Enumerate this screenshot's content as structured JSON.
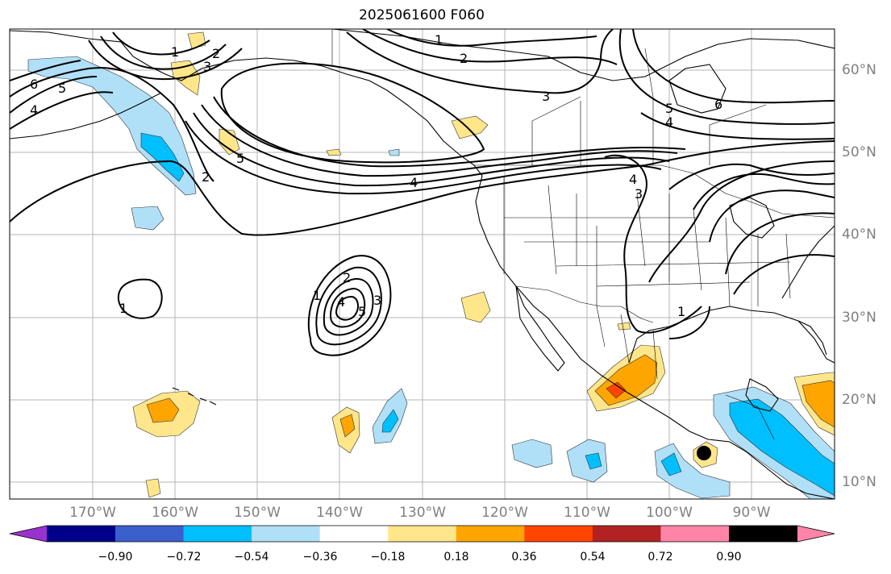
{
  "title": "2025061600 F060",
  "longitude_labels": [
    "170°W",
    "160°W",
    "150°W",
    "140°W",
    "130°W",
    "120°W",
    "110°W",
    "100°W",
    "90°W"
  ],
  "latitude_labels": [
    "60°N",
    "50°N",
    "40°N",
    "30°N",
    "20°N",
    "10°N"
  ],
  "colorbar": {
    "tick_labels": [
      "−0.90",
      "−0.72",
      "−0.54",
      "−0.36",
      "−0.18",
      "0.18",
      "0.36",
      "0.54",
      "0.72",
      "0.90"
    ],
    "colors": [
      "#9932cc",
      "#00008b",
      "#3a5fcd",
      "#00bfff",
      "#b0e0f8",
      "#ffffff",
      "#ffe68a",
      "#ffa500",
      "#ff4500",
      "#b22222",
      "#ff85a8"
    ]
  },
  "contour_labels": [
    "1",
    "2",
    "3",
    "4",
    "5",
    "6",
    "1",
    "2",
    "3",
    "4",
    "5",
    "1",
    "2",
    "3",
    "4",
    "5",
    "6",
    "1",
    "2",
    "3",
    "4",
    "5",
    "1",
    "2",
    "3",
    "4",
    "5",
    "6",
    "1"
  ]
}
